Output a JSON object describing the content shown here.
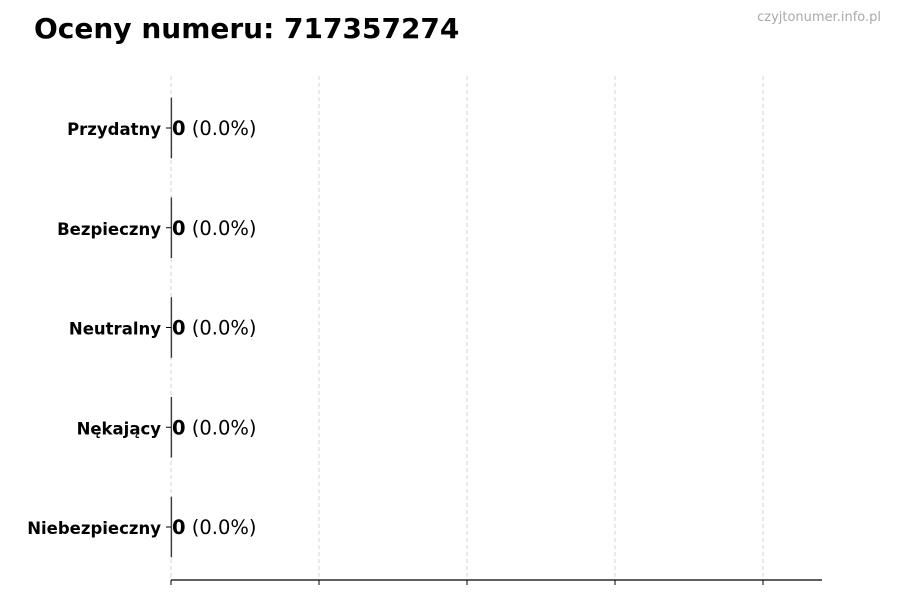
{
  "chart_data": {
    "type": "bar",
    "orientation": "horizontal",
    "title": "Oceny numeru: 717357274",
    "categories": [
      "Przydatny",
      "Bezpieczny",
      "Neutralny",
      "Nękający",
      "Niebezpieczny"
    ],
    "values": [
      0,
      0,
      0,
      0,
      0
    ],
    "data_labels": [
      {
        "count": "0",
        "percent": "(0.0%)"
      },
      {
        "count": "0",
        "percent": "(0.0%)"
      },
      {
        "count": "0",
        "percent": "(0.0%)"
      },
      {
        "count": "0",
        "percent": "(0.0%)"
      },
      {
        "count": "0",
        "percent": "(0.0%)"
      }
    ],
    "xlabel": "",
    "ylabel": "",
    "x_tick_count": 5,
    "x_tick_labels_shown": false,
    "grid": "x, dashed",
    "bar_edge_color": "#333333",
    "grid_color": "#cccccc"
  },
  "watermark": "czyjtonumer.info.pl"
}
